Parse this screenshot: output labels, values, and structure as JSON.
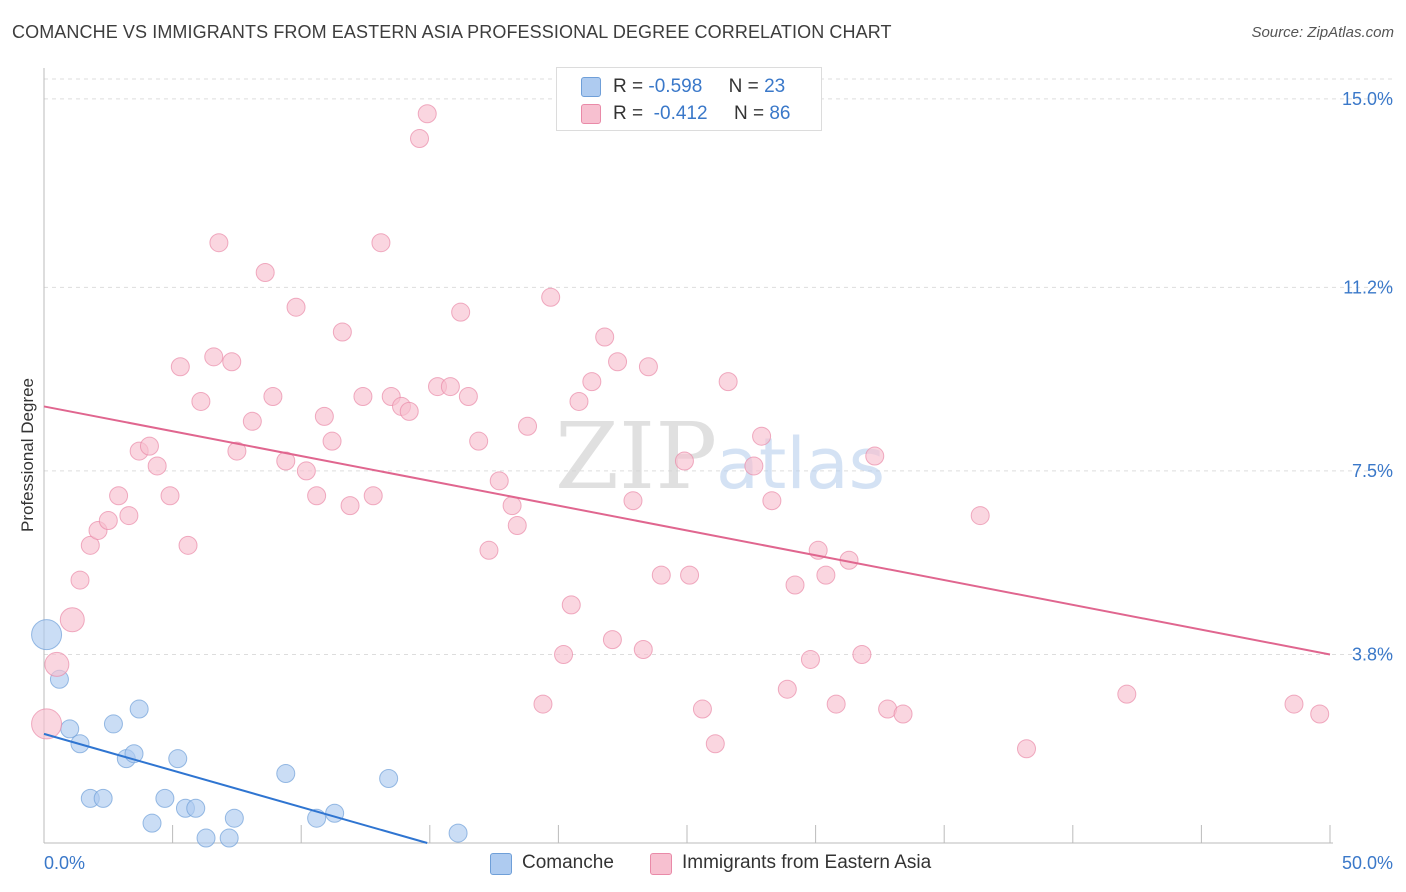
{
  "header": {
    "title": "COMANCHE VS IMMIGRANTS FROM EASTERN ASIA PROFESSIONAL DEGREE CORRELATION CHART",
    "source": "Source: ZipAtlas.com"
  },
  "watermark": {
    "zip": "ZIP",
    "atlas": "atlas"
  },
  "legend": {
    "r_prefix": "R =",
    "n_prefix": "N =",
    "rows": [
      {
        "r": "-0.598",
        "n": "23",
        "color": "#aecbf0",
        "border": "#6f9fd8"
      },
      {
        "r": "-0.412",
        "n": "86",
        "color": "#f7c0d0",
        "border": "#e98aa8"
      }
    ]
  },
  "colors": {
    "blue_fill": "#aecbf0",
    "blue_stroke": "#6f9fd8",
    "blue_line": "#2f75d1",
    "pink_fill": "#f7c0d0",
    "pink_stroke": "#e98aa8",
    "pink_line": "#e0668f",
    "grid": "#dddddd",
    "axis_label": "#3a78c9"
  },
  "chart_data": {
    "type": "scatter",
    "title": "COMANCHE VS IMMIGRANTS FROM EASTERN ASIA PROFESSIONAL DEGREE CORRELATION CHART",
    "xlabel": "",
    "ylabel": "Professional Degree",
    "xlim": [
      0,
      50
    ],
    "ylim": [
      0,
      15.4
    ],
    "x_tick_labels": [
      "0.0%",
      "50.0%"
    ],
    "y_ticks": [
      3.8,
      7.5,
      11.2,
      15.0
    ],
    "y_tick_labels": [
      "3.8%",
      "7.5%",
      "11.2%",
      "15.0%"
    ],
    "grid": true,
    "legend_position": "top-center",
    "series": [
      {
        "name": "Comanche",
        "color": "#aecbf0",
        "points": [
          [
            0.1,
            4.2
          ],
          [
            0.6,
            3.3
          ],
          [
            1.0,
            2.3
          ],
          [
            1.4,
            2.0
          ],
          [
            1.8,
            0.9
          ],
          [
            2.3,
            0.9
          ],
          [
            2.7,
            2.4
          ],
          [
            3.2,
            1.7
          ],
          [
            3.5,
            1.8
          ],
          [
            3.7,
            2.7
          ],
          [
            4.2,
            0.4
          ],
          [
            4.7,
            0.9
          ],
          [
            5.2,
            1.7
          ],
          [
            5.5,
            0.7
          ],
          [
            5.9,
            0.7
          ],
          [
            6.3,
            0.1
          ],
          [
            7.2,
            0.1
          ],
          [
            7.4,
            0.5
          ],
          [
            9.4,
            1.4
          ],
          [
            10.6,
            0.5
          ],
          [
            11.3,
            0.6
          ],
          [
            13.4,
            1.3
          ],
          [
            16.1,
            0.2
          ]
        ],
        "trend": {
          "x": [
            0.0,
            14.9
          ],
          "y": [
            2.2,
            0.0
          ]
        }
      },
      {
        "name": "Immigrants from Eastern Asia",
        "color": "#f7c0d0",
        "points": [
          [
            0.1,
            2.4
          ],
          [
            0.5,
            3.6
          ],
          [
            1.1,
            4.5
          ],
          [
            1.4,
            5.3
          ],
          [
            1.8,
            6.0
          ],
          [
            2.1,
            6.3
          ],
          [
            2.5,
            6.5
          ],
          [
            2.9,
            7.0
          ],
          [
            3.3,
            6.6
          ],
          [
            3.7,
            7.9
          ],
          [
            4.1,
            8.0
          ],
          [
            4.4,
            7.6
          ],
          [
            4.9,
            7.0
          ],
          [
            5.3,
            9.6
          ],
          [
            5.6,
            6.0
          ],
          [
            6.1,
            8.9
          ],
          [
            6.6,
            9.8
          ],
          [
            6.8,
            12.1
          ],
          [
            7.3,
            9.7
          ],
          [
            7.5,
            7.9
          ],
          [
            8.1,
            8.5
          ],
          [
            8.6,
            11.5
          ],
          [
            8.9,
            9.0
          ],
          [
            9.4,
            7.7
          ],
          [
            9.8,
            10.8
          ],
          [
            10.2,
            7.5
          ],
          [
            10.6,
            7.0
          ],
          [
            10.9,
            8.6
          ],
          [
            11.2,
            8.1
          ],
          [
            11.6,
            10.3
          ],
          [
            11.9,
            6.8
          ],
          [
            12.4,
            9.0
          ],
          [
            12.8,
            7.0
          ],
          [
            13.1,
            12.1
          ],
          [
            13.5,
            9.0
          ],
          [
            13.9,
            8.8
          ],
          [
            14.2,
            8.7
          ],
          [
            14.6,
            14.2
          ],
          [
            14.9,
            14.7
          ],
          [
            15.3,
            9.2
          ],
          [
            15.8,
            9.2
          ],
          [
            16.2,
            10.7
          ],
          [
            16.5,
            9.0
          ],
          [
            16.9,
            8.1
          ],
          [
            17.3,
            5.9
          ],
          [
            17.7,
            7.3
          ],
          [
            18.2,
            6.8
          ],
          [
            18.4,
            6.4
          ],
          [
            18.8,
            8.4
          ],
          [
            19.4,
            2.8
          ],
          [
            19.7,
            11.0
          ],
          [
            20.2,
            3.8
          ],
          [
            20.5,
            4.8
          ],
          [
            20.8,
            8.9
          ],
          [
            21.3,
            9.3
          ],
          [
            21.8,
            10.2
          ],
          [
            22.1,
            4.1
          ],
          [
            22.3,
            9.7
          ],
          [
            22.9,
            6.9
          ],
          [
            23.3,
            3.9
          ],
          [
            23.5,
            9.6
          ],
          [
            24.0,
            5.4
          ],
          [
            24.9,
            7.7
          ],
          [
            25.1,
            5.4
          ],
          [
            25.6,
            2.7
          ],
          [
            26.1,
            2.0
          ],
          [
            26.6,
            9.3
          ],
          [
            27.6,
            7.6
          ],
          [
            27.9,
            8.2
          ],
          [
            28.3,
            6.9
          ],
          [
            28.9,
            3.1
          ],
          [
            29.2,
            5.2
          ],
          [
            29.8,
            3.7
          ],
          [
            30.1,
            5.9
          ],
          [
            30.4,
            5.4
          ],
          [
            30.8,
            2.8
          ],
          [
            31.3,
            5.7
          ],
          [
            31.8,
            3.8
          ],
          [
            32.3,
            7.8
          ],
          [
            32.8,
            2.7
          ],
          [
            33.4,
            2.6
          ],
          [
            36.4,
            6.6
          ],
          [
            38.2,
            1.9
          ],
          [
            42.1,
            3.0
          ],
          [
            48.6,
            2.8
          ],
          [
            49.6,
            2.6
          ]
        ],
        "trend": {
          "x": [
            0.0,
            50.0
          ],
          "y": [
            8.8,
            3.8
          ]
        }
      }
    ]
  }
}
